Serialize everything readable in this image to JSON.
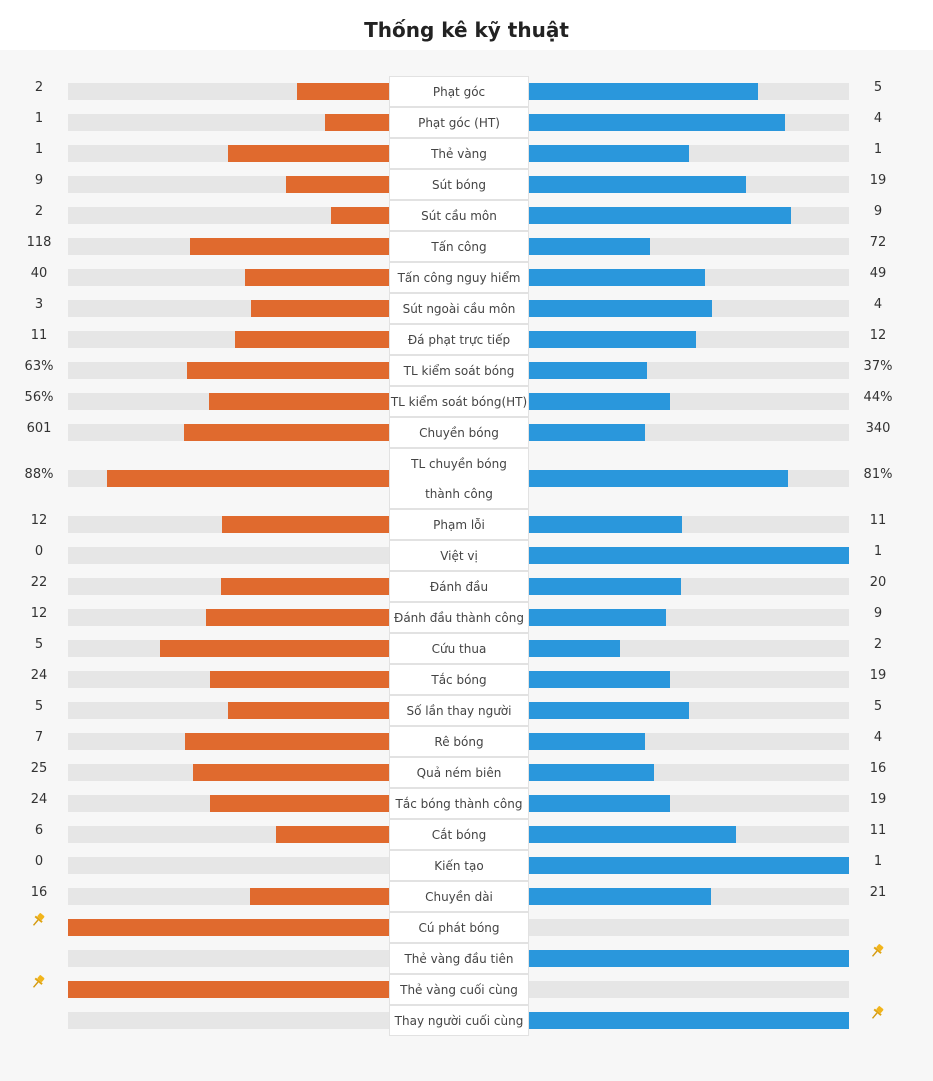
{
  "title": "Thống kê kỹ thuật",
  "colors": {
    "home": "#e06a2e",
    "away": "#2a97dc",
    "track": "#e6e6e6"
  },
  "chart_data": {
    "type": "bar",
    "orientation": "diverging-horizontal",
    "series": [
      {
        "side": "home"
      },
      {
        "side": "away"
      }
    ],
    "rows": [
      {
        "label": "Phạt góc",
        "home": "2",
        "away": "5",
        "home_share": 0.2857,
        "away_share": 0.7143
      },
      {
        "label": "Phạt góc (HT)",
        "home": "1",
        "away": "4",
        "home_share": 0.2,
        "away_share": 0.8
      },
      {
        "label": "Thẻ vàng",
        "home": "1",
        "away": "1",
        "home_share": 0.5,
        "away_share": 0.5
      },
      {
        "label": "Sút bóng",
        "home": "9",
        "away": "19",
        "home_share": 0.3214,
        "away_share": 0.6786
      },
      {
        "label": "Sút cầu môn",
        "home": "2",
        "away": "9",
        "home_share": 0.1818,
        "away_share": 0.8182
      },
      {
        "label": "Tấn công",
        "home": "118",
        "away": "72",
        "home_share": 0.6211,
        "away_share": 0.3789
      },
      {
        "label": "Tấn công nguy hiểm",
        "home": "40",
        "away": "49",
        "home_share": 0.4494,
        "away_share": 0.5506
      },
      {
        "label": "Sút ngoài cầu môn",
        "home": "3",
        "away": "4",
        "home_share": 0.4286,
        "away_share": 0.5714
      },
      {
        "label": "Đá phạt trực tiếp",
        "home": "11",
        "away": "12",
        "home_share": 0.4783,
        "away_share": 0.5217
      },
      {
        "label": "TL kiểm soát bóng",
        "home": "63%",
        "away": "37%",
        "home_share": 0.63,
        "away_share": 0.37
      },
      {
        "label": "TL kiểm soát bóng(HT)",
        "home": "56%",
        "away": "44%",
        "home_share": 0.56,
        "away_share": 0.44
      },
      {
        "label": "Chuyền bóng",
        "home": "601",
        "away": "340",
        "home_share": 0.6387,
        "away_share": 0.3613
      },
      {
        "label": "TL chuyền bóng thành công",
        "home": "88%",
        "away": "81%",
        "home_share": 0.88,
        "away_share": 0.81,
        "tall": true
      },
      {
        "label": "Phạm lỗi",
        "home": "12",
        "away": "11",
        "home_share": 0.5217,
        "away_share": 0.4783
      },
      {
        "label": "Việt vị",
        "home": "0",
        "away": "1",
        "home_share": 0,
        "away_share": 1
      },
      {
        "label": "Đánh đầu",
        "home": "22",
        "away": "20",
        "home_share": 0.5238,
        "away_share": 0.4762
      },
      {
        "label": "Đánh đầu thành công",
        "home": "12",
        "away": "9",
        "home_share": 0.5714,
        "away_share": 0.4286
      },
      {
        "label": "Cứu thua",
        "home": "5",
        "away": "2",
        "home_share": 0.7143,
        "away_share": 0.2857
      },
      {
        "label": "Tắc bóng",
        "home": "24",
        "away": "19",
        "home_share": 0.5581,
        "away_share": 0.4419
      },
      {
        "label": "Số lần thay người",
        "home": "5",
        "away": "5",
        "home_share": 0.5,
        "away_share": 0.5
      },
      {
        "label": "Rê bóng",
        "home": "7",
        "away": "4",
        "home_share": 0.6364,
        "away_share": 0.3636
      },
      {
        "label": "Quả ném biên",
        "home": "25",
        "away": "16",
        "home_share": 0.6098,
        "away_share": 0.3902
      },
      {
        "label": "Tắc bóng thành công",
        "home": "24",
        "away": "19",
        "home_share": 0.5581,
        "away_share": 0.4419
      },
      {
        "label": "Cắt bóng",
        "home": "6",
        "away": "11",
        "home_share": 0.3529,
        "away_share": 0.6471
      },
      {
        "label": "Kiến tạo",
        "home": "0",
        "away": "1",
        "home_share": 0,
        "away_share": 1
      },
      {
        "label": "Chuyền dài",
        "home": "16",
        "away": "21",
        "home_share": 0.4324,
        "away_share": 0.5676
      },
      {
        "label": "Cú phát bóng",
        "home": "",
        "away": "",
        "home_share": 1,
        "away_share": 0,
        "home_pin": true,
        "away_pin": false
      },
      {
        "label": "Thẻ vàng đầu tiên",
        "home": "",
        "away": "",
        "home_share": 0,
        "away_share": 1,
        "home_pin": false,
        "away_pin": true
      },
      {
        "label": "Thẻ vàng cuối cùng",
        "home": "",
        "away": "",
        "home_share": 1,
        "away_share": 0,
        "home_pin": true,
        "away_pin": false
      },
      {
        "label": "Thay người cuối cùng",
        "home": "",
        "away": "",
        "home_share": 0,
        "away_share": 1,
        "home_pin": false,
        "away_pin": true
      }
    ]
  }
}
